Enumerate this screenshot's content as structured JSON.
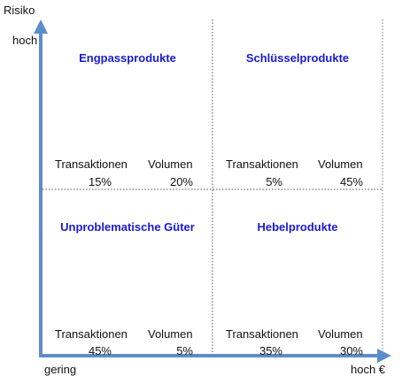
{
  "axes": {
    "y_label": "Risiko",
    "y_high": "hoch",
    "x_low": "gering",
    "x_high": "hoch €"
  },
  "quadrants": [
    {
      "name": "Engpassprodukte",
      "transaktionen_label": "Transaktionen",
      "volumen_label": "Volumen",
      "transaktionen": "15%",
      "volumen": "20%"
    },
    {
      "name": "Schlüsselprodukte",
      "transaktionen_label": "Transaktionen",
      "volumen_label": "Volumen",
      "transaktionen": "5%",
      "volumen": "45%"
    },
    {
      "name": "Unproblematische Güter",
      "transaktionen_label": "Transaktionen",
      "volumen_label": "Volumen",
      "transaktionen": "45%",
      "volumen": "5%"
    },
    {
      "name": "Hebelprodukte",
      "transaktionen_label": "Transaktionen",
      "volumen_label": "Volumen",
      "transaktionen": "35%",
      "volumen": "30%"
    }
  ],
  "colors": {
    "title": "#1a1ad4",
    "axis": "#5b8ec9",
    "divider": "#555555"
  }
}
